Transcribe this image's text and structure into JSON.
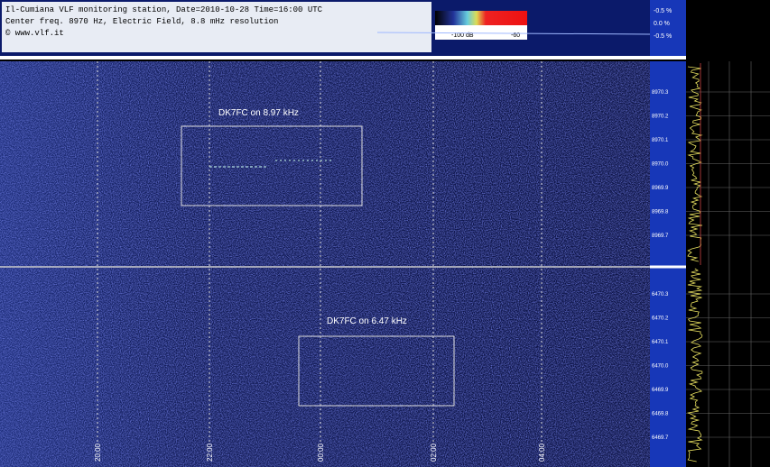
{
  "header": {
    "lines": [
      "Il-Cumiana VLF monitoring station, Date=2010-10-28 Time=16:00 UTC",
      "Center freq. 8970 Hz, Electric Field, 8.8 mHz resolution",
      "© www.vlf.it"
    ]
  },
  "colorbar": {
    "labels": [
      "-100 dB",
      "-60"
    ]
  },
  "level_labels": [
    "-0.5 %",
    "0.0 %",
    "-0.5 %"
  ],
  "annotations": [
    {
      "label": "DK7FC on 8.97 kHz"
    },
    {
      "label": "DK7FC on 6.47 kHz"
    }
  ],
  "top_panel": {
    "freq_labels": [
      "8970.3",
      "8970.2",
      "8970.1",
      "8970.0",
      "8969.9",
      "8969.8",
      "8969.7"
    ]
  },
  "bottom_panel": {
    "freq_labels": [
      "6470.3",
      "6470.2",
      "6470.1",
      "6470.0",
      "6469.9",
      "6469.8",
      "6469.7"
    ]
  },
  "time_labels": [
    "20:00",
    "22:00",
    "00:00",
    "02:00",
    "04:00"
  ]
}
